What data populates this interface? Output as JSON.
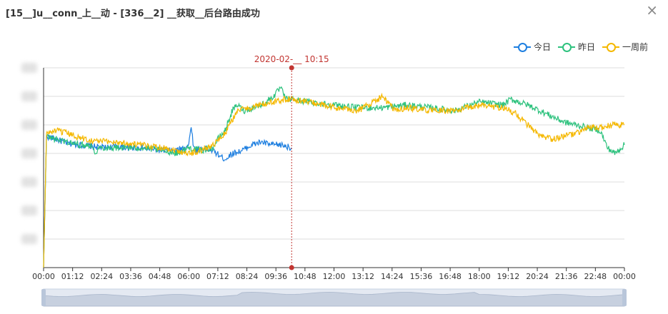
{
  "dialog": {
    "title": "[15__]u__conn_上__动 - [336__2] __获取__后台路由成功",
    "close_glyph": "×"
  },
  "legend": [
    {
      "name": "今日",
      "color": "#1e7fe0"
    },
    {
      "name": "昨日",
      "color": "#2ec27e"
    },
    {
      "name": "一周前",
      "color": "#f5b800"
    }
  ],
  "tooltip": {
    "label": "2020-02-__ 10:15",
    "color": "#c23531"
  },
  "chart_data": {
    "type": "line",
    "x_tick_labels": [
      "00:00",
      "01:12",
      "02:24",
      "03:36",
      "04:48",
      "06:00",
      "07:12",
      "08:24",
      "09:36",
      "10:48",
      "12:00",
      "13:12",
      "14:24",
      "15:36",
      "16:48",
      "18:00",
      "19:12",
      "20:24",
      "21:36",
      "22:48",
      "00:00"
    ],
    "xlim": [
      0,
      24
    ],
    "ylim": [
      0,
      7
    ],
    "marker_x": 10.25,
    "series": [
      {
        "name": "今日",
        "color": "#1e7fe0",
        "x": [
          0.12,
          0.5,
          1,
          1.5,
          2,
          2.5,
          3,
          3.5,
          4,
          4.5,
          5,
          5.5,
          6,
          6.1,
          6.2,
          6.3,
          6.5,
          7,
          7.3,
          7.5,
          7.8,
          8.2,
          8.6,
          9,
          9.4,
          9.8,
          10.25
        ],
        "y": [
          4.6,
          4.5,
          4.35,
          4.3,
          4.25,
          4.2,
          4.25,
          4.2,
          4.2,
          4.15,
          4.1,
          4.1,
          4.3,
          5,
          4.2,
          4.1,
          4.2,
          4.1,
          3.9,
          3.8,
          4.0,
          4.1,
          4.3,
          4.4,
          4.3,
          4.3,
          4.2
        ]
      },
      {
        "name": "昨日",
        "color": "#2ec27e",
        "x": [
          0.12,
          0.5,
          1,
          1.5,
          2,
          2.1,
          2.3,
          3,
          4,
          5,
          5.5,
          6,
          6.5,
          7,
          7.2,
          7.5,
          7.8,
          8,
          8.3,
          9,
          9.5,
          9.8,
          10,
          10.25,
          11,
          12,
          13,
          14,
          15,
          16,
          17,
          18,
          19,
          19.3,
          20,
          20.5,
          21,
          21.5,
          22,
          22.5,
          23,
          23.3,
          23.6,
          24
        ],
        "y": [
          4.6,
          4.5,
          4.4,
          4.3,
          4.3,
          4.0,
          4.2,
          4.2,
          4.2,
          4.1,
          4.0,
          4.2,
          4.1,
          4.2,
          4.5,
          4.8,
          5.5,
          5.7,
          5.5,
          5.7,
          6.0,
          6.3,
          5.9,
          5.9,
          5.8,
          5.7,
          5.6,
          5.6,
          5.7,
          5.6,
          5.5,
          5.8,
          5.7,
          5.9,
          5.7,
          5.5,
          5.3,
          5.1,
          5.0,
          4.9,
          4.8,
          4.2,
          4.0,
          4.3
        ]
      },
      {
        "name": "一周前",
        "color": "#f5b800",
        "x": [
          0.12,
          0.5,
          1,
          1.5,
          2,
          3,
          4,
          5,
          5.5,
          6,
          6.5,
          7,
          7.5,
          8,
          8.5,
          9,
          9.5,
          10,
          10.25,
          11,
          12,
          13,
          14,
          14.5,
          15,
          16,
          17,
          18,
          19,
          19.5,
          20,
          20.5,
          21,
          21.5,
          22,
          22.5,
          23,
          23.5,
          24
        ],
        "y": [
          4.7,
          4.8,
          4.7,
          4.55,
          4.45,
          4.4,
          4.3,
          4.2,
          4.1,
          4.0,
          4.1,
          4.3,
          4.7,
          5.5,
          5.6,
          5.7,
          5.8,
          5.9,
          5.9,
          5.8,
          5.6,
          5.5,
          6.0,
          5.5,
          5.6,
          5.5,
          5.5,
          5.7,
          5.6,
          5.4,
          5.0,
          4.6,
          4.5,
          4.6,
          4.7,
          4.9,
          4.9,
          5.0,
          5.0
        ]
      }
    ]
  }
}
